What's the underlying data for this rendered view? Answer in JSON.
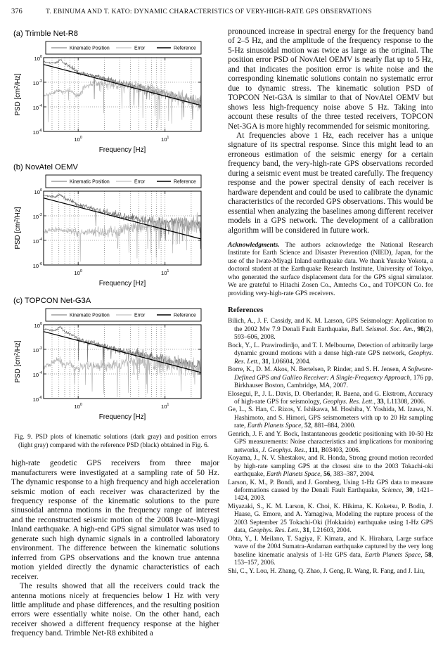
{
  "page": {
    "number": "376",
    "running_title": "T. EBINUMA AND T. KATO: DYNAMIC CHARACTERISTICS OF VERY-HIGH-RATE GPS OBSERVATIONS"
  },
  "figure": {
    "caption": "Fig. 9.   PSD plots of kinematic solutions (dark gray) and position errors (light gray) compared with the reference PSD (black) obtained in Fig. 6."
  },
  "chart_data": [
    {
      "type": "line",
      "panel_label": "(a)",
      "title": "Trimble Net-R8",
      "xlabel": "Frequency [Hz]",
      "ylabel": "PSD [cm²/Hz]",
      "xscale": "log",
      "yscale": "log",
      "xlim": [
        0.4,
        26
      ],
      "ylim": [
        1e-06,
        1
      ],
      "xtick_exponents": [
        0,
        1
      ],
      "ytick_exponents": [
        0,
        -2,
        -4,
        -6
      ],
      "grid_y": [
        0.01,
        0.0001
      ],
      "legend": [
        "Kinematic Position",
        "Error",
        "Reference"
      ],
      "series": [
        {
          "name": "Kinematic Position",
          "color": "#6e6e6e",
          "width": 0.6,
          "seed": 11,
          "x": [
            0.4,
            0.55,
            0.62,
            0.7,
            0.9,
            1.0,
            1.5,
            2,
            3,
            5,
            8,
            12,
            18,
            26
          ],
          "y": [
            0.45,
            0.35,
            0.75,
            0.3,
            0.12,
            0.06,
            0.035,
            0.02,
            0.009,
            0.004,
            0.0017,
            0.0009,
            0.00045,
            0.00025
          ],
          "noise": {
            "base": 0.08,
            "max": 0.45,
            "spike_prob": 0.03,
            "spike_depth": 1.6
          }
        },
        {
          "name": "Error",
          "color": "#b0b0b0",
          "width": 0.6,
          "seed": 12,
          "x": [
            0.4,
            0.5,
            0.6,
            0.7,
            0.8,
            0.9,
            1.0,
            1.2,
            1.5,
            2,
            3,
            5,
            8,
            12,
            18,
            26
          ],
          "y": [
            0.0008,
            0.0012,
            0.0022,
            0.0015,
            0.0025,
            0.0012,
            0.0008,
            0.004,
            0.008,
            0.008,
            0.006,
            0.0035,
            0.0018,
            0.0009,
            0.00045,
            0.00025
          ],
          "noise": {
            "base": 0.12,
            "max": 0.7,
            "spike_prob": 0.06,
            "spike_depth": 2.2
          }
        },
        {
          "name": "Reference",
          "color": "#000000",
          "width": 1.25,
          "seed": 0,
          "x": [
            0.4,
            26
          ],
          "y": [
            0.28,
            0.00013
          ]
        }
      ]
    },
    {
      "type": "line",
      "panel_label": "(b)",
      "title": "NovAtel OEMV",
      "xlabel": "Frequency [Hz]",
      "ylabel": "PSD [cm²/Hz]",
      "xscale": "log",
      "yscale": "log",
      "xlim": [
        0.4,
        26
      ],
      "ylim": [
        1e-06,
        1
      ],
      "xtick_exponents": [
        0,
        1
      ],
      "ytick_exponents": [
        0,
        -2,
        -4,
        -6
      ],
      "grid_y": [
        0.01,
        0.0001
      ],
      "legend": [
        "Kinematic Position",
        "Error",
        "Reference"
      ],
      "series": [
        {
          "name": "Kinematic Position",
          "color": "#6e6e6e",
          "width": 0.6,
          "seed": 21,
          "x": [
            0.4,
            0.55,
            0.62,
            0.7,
            0.9,
            1.0,
            1.5,
            2,
            3,
            5,
            8,
            12,
            18,
            26
          ],
          "y": [
            0.45,
            0.32,
            0.6,
            0.28,
            0.13,
            0.07,
            0.04,
            0.022,
            0.01,
            0.005,
            0.0028,
            0.0025,
            0.0022,
            0.002
          ],
          "noise": {
            "base": 0.08,
            "max": 0.5,
            "spike_prob": 0.05,
            "spike_depth": 2.0
          }
        },
        {
          "name": "Error",
          "color": "#b0b0b0",
          "width": 0.6,
          "seed": 22,
          "x": [
            0.4,
            0.5,
            0.6,
            0.7,
            0.8,
            0.9,
            1.0,
            1.2,
            1.5,
            2,
            3,
            5,
            8,
            12,
            18,
            26
          ],
          "y": [
            0.0005,
            0.0007,
            0.0009,
            0.0005,
            0.0007,
            0.0004,
            0.0005,
            0.0004,
            0.0005,
            0.0005,
            0.0007,
            0.0015,
            0.002,
            0.002,
            0.0019,
            0.0018
          ],
          "noise": {
            "base": 0.15,
            "max": 0.85,
            "spike_prob": 0.08,
            "spike_depth": 2.6
          }
        },
        {
          "name": "Reference",
          "color": "#000000",
          "width": 1.25,
          "seed": 0,
          "x": [
            0.4,
            26
          ],
          "y": [
            0.28,
            0.00013
          ]
        }
      ]
    },
    {
      "type": "line",
      "panel_label": "(c)",
      "title": "TOPCON Net-G3A",
      "xlabel": "Frequency [Hz]",
      "ylabel": "PSD [cm²/Hz]",
      "xscale": "log",
      "yscale": "log",
      "xlim": [
        0.4,
        26
      ],
      "ylim": [
        1e-06,
        1
      ],
      "xtick_exponents": [
        0,
        1
      ],
      "ytick_exponents": [
        0,
        -2,
        -4,
        -6
      ],
      "grid_y": [
        0.01,
        0.0001
      ],
      "legend": [
        "Kinematic Position",
        "Error",
        "Reference"
      ],
      "series": [
        {
          "name": "Kinematic Position",
          "color": "#6e6e6e",
          "width": 0.6,
          "seed": 31,
          "x": [
            0.4,
            0.55,
            0.62,
            0.7,
            0.9,
            1.0,
            1.5,
            2,
            3,
            5,
            8,
            12,
            18,
            26
          ],
          "y": [
            0.45,
            0.33,
            0.7,
            0.28,
            0.12,
            0.06,
            0.03,
            0.018,
            0.008,
            0.0045,
            0.002,
            0.0012,
            0.0007,
            0.0004
          ],
          "noise": {
            "base": 0.07,
            "max": 0.5,
            "spike_prob": 0.05,
            "spike_depth": 2.0
          }
        },
        {
          "name": "Error",
          "color": "#b0b0b0",
          "width": 0.6,
          "seed": 32,
          "x": [
            0.4,
            0.5,
            0.6,
            0.7,
            0.8,
            0.9,
            1.0,
            1.2,
            1.5,
            2,
            3,
            5,
            8,
            12,
            18,
            26
          ],
          "y": [
            0.0003,
            0.0008,
            0.0015,
            0.0004,
            0.0009,
            0.0003,
            0.00025,
            0.0005,
            0.0004,
            0.0004,
            0.0006,
            0.0012,
            0.0009,
            0.0006,
            0.0004,
            0.0003
          ],
          "noise": {
            "base": 0.2,
            "max": 0.8,
            "spike_prob": 0.07,
            "spike_depth": 2.3
          }
        },
        {
          "name": "Reference",
          "color": "#000000",
          "width": 1.25,
          "seed": 0,
          "x": [
            0.4,
            26
          ],
          "y": [
            0.28,
            0.00013
          ]
        }
      ]
    }
  ],
  "left_column": {
    "paragraphs": [
      {
        "indent": false,
        "text": "high-rate geodetic GPS receivers from three major manufacturers were investigated at a sampling rate of 50 Hz. The dynamic response to a high frequency and high acceleration seismic motion of each receiver was characterized by the frequency response of the kinematic solutions to the pure sinusoidal antenna motions in the frequency range of interest and the reconstructed seismic motion of the 2008 Iwate-Miyagi Inland earthquake. A high-end GPS signal simulator was used to generate such high dynamic signals in a controlled laboratory environment. The difference between the kinematic solutions inferred from GPS observations and the known true antenna motion yielded directly the dynamic characteristics of each receiver."
      },
      {
        "indent": true,
        "text": "The results showed that all the receivers could track the antenna motions nicely at frequencies below 1 Hz with very little amplitude and phase differences, and the resulting position errors were essentially white noise. On the other hand, each receiver showed a different frequency response at the higher frequency band. Trimble Net-R8 exhibited a"
      }
    ]
  },
  "right_column": {
    "paragraphs": [
      {
        "indent": false,
        "text": "pronounced increase in spectral energy for the frequency band of 2–5 Hz, and the amplitude of the frequency response to the 5-Hz sinusoidal motion was twice as large as the original. The position error PSD of NovAtel OEMV is nearly flat up to 5 Hz, and that indicates the position error is white noise and the corresponding kinematic solutions contain no systematic error due to dynamic stress. The kinematic solution PSD of TOPCON Net-G3A is similar to that of NovAtel OEMV but shows less high-frequency noise above 5 Hz. Taking into account these results of the three tested receivers, TOPCON Net-3GA is more highly recommended for seismic monitoring."
      },
      {
        "indent": true,
        "text": "At frequencies above 1 Hz, each receiver has a unique signature of its spectral response. Since this might lead to an erroneous estimation of the seismic energy for a certain frequency band, the very-high-rate GPS observations recorded during a seismic event must be treated carefully. The frequency response and the power spectral density of each receiver is hardware dependent and could be used to calibrate the dynamic characteristics of the recorded GPS observations. This would be essential when analyzing the baselines among different receiver models in a GPS network. The development of a calibration algorithm will be considered in future work."
      }
    ],
    "acknowledgments_label": "Acknowledgments.",
    "acknowledgments_text": "The authors acknowledge the National Research Institute for Earth Science and Disaster Prevention (NIED), Japan, for the use of the Iwate-Miyagi Inland earthquake data. We thank Yusuke Yokota, a doctoral student at the Earthquake Research Institute, University of Tokyo, who generated the surface displacement data for the GPS signal simulator. We are grateful to Hitachi Zosen Co., Amtechs Co., and TOPCON Co. for providing very-high-rate GPS receivers.",
    "references_heading": "References",
    "references": [
      [
        {
          "t": "Bilich, A., J. F. Cassidy, and K. M. Larson, GPS Seismology: Application to the 2002 Mw 7.9 Denali Fault Earthquake, ",
          "s": ""
        },
        {
          "t": "Bull. Seismol. Soc. Am.",
          "s": "i"
        },
        {
          "t": ", ",
          "s": ""
        },
        {
          "t": "98",
          "s": "b"
        },
        {
          "t": "(2), 593–606, 2008.",
          "s": ""
        }
      ],
      [
        {
          "t": "Bock, Y., L. Prawirodirdjo, and T. I. Melbourne, Detection of arbitrarily large dynamic ground motions with a dense high-rate GPS network, ",
          "s": ""
        },
        {
          "t": "Geophys. Res. Lett.",
          "s": "i"
        },
        {
          "t": ", ",
          "s": ""
        },
        {
          "t": "31",
          "s": "b"
        },
        {
          "t": ", L06604, 2004.",
          "s": ""
        }
      ],
      [
        {
          "t": "Borre, K., D. M. Akos, N. Bertelsen, P. Rinder, and S. H. Jensen, ",
          "s": ""
        },
        {
          "t": "A Software-Defined GPS and Galileo Receiver: A Single-Frequency Approach",
          "s": "i"
        },
        {
          "t": ", 176 pp, Birkhauser Boston, Cambridge, MA, 2007.",
          "s": ""
        }
      ],
      [
        {
          "t": "Elosegui, P., J. L. Davis, D. Oberlander, R. Baena, and G. Ekstrom, Accuracy of high-rate GPS for seismology, ",
          "s": ""
        },
        {
          "t": "Geophys. Res. Lett.",
          "s": "i"
        },
        {
          "t": ", ",
          "s": ""
        },
        {
          "t": "33",
          "s": "b"
        },
        {
          "t": ", L11308, 2006.",
          "s": ""
        }
      ],
      [
        {
          "t": "Ge, L., S. Han, C. Rizos, Y. Ishikawa, M. Hoshiba, Y. Yoshida, M. Izawa, N. Hashimoto, and S. Himori, GPS seismometers with up to 20 Hz sampling rate, ",
          "s": ""
        },
        {
          "t": "Earth Planets Space",
          "s": "i"
        },
        {
          "t": ", ",
          "s": ""
        },
        {
          "t": "52",
          "s": "b"
        },
        {
          "t": ", 881–884, 2000.",
          "s": ""
        }
      ],
      [
        {
          "t": "Genrich, J. F. and Y. Bock, Instantaneous geodetic positioning with 10-50 Hz GPS measurements: Noise characteristics and implications for monitoring networks, ",
          "s": ""
        },
        {
          "t": "J. Geophys. Res.",
          "s": "i"
        },
        {
          "t": ", ",
          "s": ""
        },
        {
          "t": "111",
          "s": "b"
        },
        {
          "t": ", B03403, 2006.",
          "s": ""
        }
      ],
      [
        {
          "t": "Koyama, J., N. V. Shestakov, and R. Honda, Strong ground motion recorded by high-rate sampling GPS at the closest site to the 2003 Tokachi-oki earthquake, ",
          "s": ""
        },
        {
          "t": "Earth Planets Space",
          "s": "i"
        },
        {
          "t": ", ",
          "s": ""
        },
        {
          "t": "56",
          "s": "b"
        },
        {
          "t": ", 383–387, 2004.",
          "s": ""
        }
      ],
      [
        {
          "t": "Larson, K. M., P. Bondi, and J. Gomberg, Using 1-Hz GPS data to measure deformations caused by the Denali Fault Earthquake, ",
          "s": ""
        },
        {
          "t": "Science",
          "s": "i"
        },
        {
          "t": ", ",
          "s": ""
        },
        {
          "t": "30",
          "s": "b"
        },
        {
          "t": ", 1421–1424, 2003.",
          "s": ""
        }
      ],
      [
        {
          "t": "Miyazaki, S., K. M. Larson, K. Choi, K. Hikima, K. Koketsu, P. Bodin, J. Haase, G. Emore, and A. Yamagiwa, Modeling the rupture process of the 2003 September 25 Tokachi-Oki (Hokkaido) earthquake using 1-Hz GPS data, ",
          "s": ""
        },
        {
          "t": "Geophys. Res. Lett.",
          "s": "i"
        },
        {
          "t": ", ",
          "s": ""
        },
        {
          "t": "31",
          "s": "b"
        },
        {
          "t": ", L21603, 2004.",
          "s": ""
        }
      ],
      [
        {
          "t": "Ohta, Y., I. Meilano, T. Sagiya, F. Kimata, and K. Hirahara, Large surface wave of the 2004 Sumatra-Andaman earthquake captured by the very long baseline kinematic analysis of 1-Hz GPS data, ",
          "s": ""
        },
        {
          "t": "Earth Planets Space",
          "s": "i"
        },
        {
          "t": ", ",
          "s": ""
        },
        {
          "t": "58",
          "s": "b"
        },
        {
          "t": ", 153–157, 2006.",
          "s": ""
        }
      ],
      [
        {
          "t": "Shi, C., Y. Lou, H. Zhang, Q. Zhao, J. Geng, R. Wang, R. Fang, and J. Liu,",
          "s": ""
        }
      ]
    ]
  }
}
